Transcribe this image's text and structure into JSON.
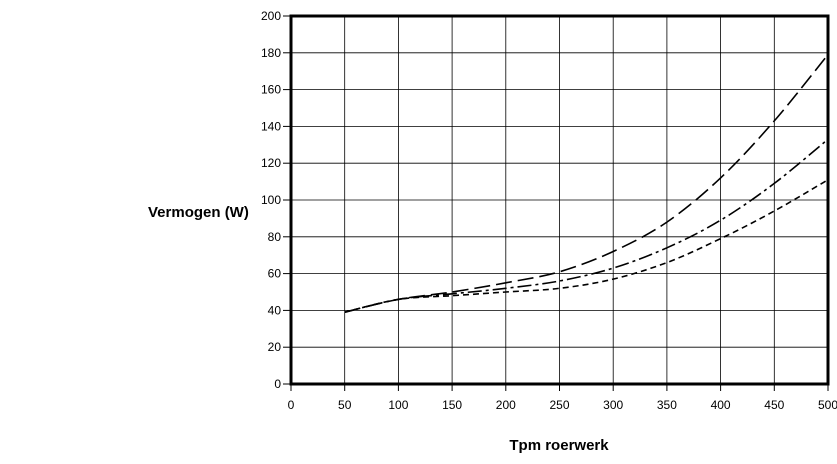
{
  "chart_data": {
    "type": "line",
    "title": "",
    "xlabel": "Tpm roerwerk",
    "ylabel": "Vermogen (W)",
    "xlim": [
      0,
      500
    ],
    "ylim": [
      0,
      200
    ],
    "x_ticks": [
      "0",
      "50",
      "100",
      "150",
      "200",
      "250",
      "300",
      "350",
      "400",
      "450",
      "500"
    ],
    "y_ticks": [
      "0",
      "20",
      "40",
      "60",
      "80",
      "100",
      "120",
      "140",
      "160",
      "180",
      "200"
    ],
    "grid": true,
    "legend": "none",
    "series": [
      {
        "style": "long-dash",
        "x": [
          50,
          100,
          150,
          200,
          250,
          300,
          350,
          400,
          450,
          500
        ],
        "y": [
          39,
          46,
          50,
          55,
          61,
          72,
          88,
          112,
          143,
          179
        ]
      },
      {
        "style": "dash-dot",
        "x": [
          50,
          100,
          150,
          200,
          250,
          300,
          350,
          400,
          450,
          500
        ],
        "y": [
          39,
          46,
          49,
          52,
          56,
          63,
          74,
          89,
          109,
          133
        ]
      },
      {
        "style": "short-dash",
        "x": [
          50,
          100,
          150,
          200,
          250,
          300,
          350,
          400,
          450,
          500
        ],
        "y": [
          39,
          46,
          48,
          50,
          52,
          57,
          66,
          79,
          94,
          111
        ]
      }
    ]
  }
}
